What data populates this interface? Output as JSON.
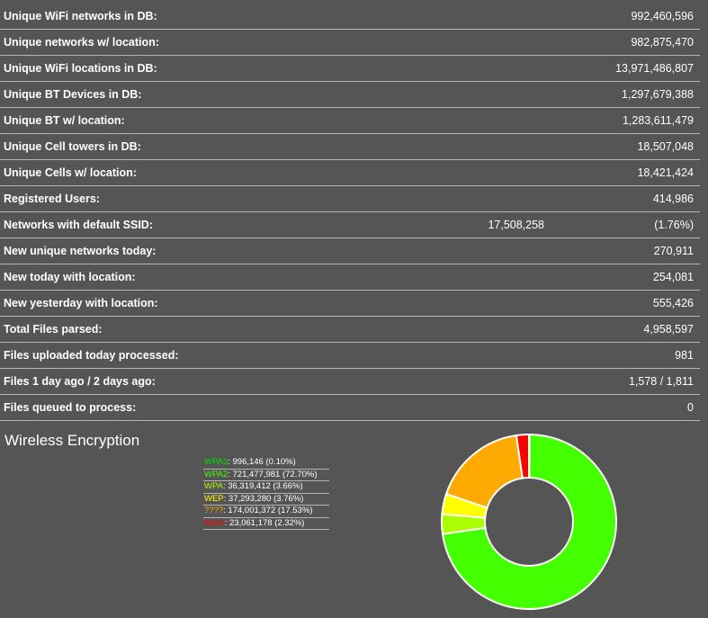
{
  "stats": [
    {
      "label": "Unique WiFi networks in DB:",
      "value": "992,460,596"
    },
    {
      "label": "Unique networks w/ location:",
      "value": "982,875,470"
    },
    {
      "label": "Unique WiFi locations in DB:",
      "value": "13,971,486,807"
    },
    {
      "label": "Unique BT Devices in DB:",
      "value": "1,297,679,388"
    },
    {
      "label": "Unique BT w/ location:",
      "value": "1,283,611,479"
    },
    {
      "label": "Unique Cell towers in DB:",
      "value": "18,507,048"
    },
    {
      "label": "Unique Cells w/ location:",
      "value": "18,421,424"
    },
    {
      "label": "Registered Users:",
      "value": "414,986"
    },
    {
      "label": "Networks with default SSID:",
      "value": "17,508,258",
      "extra": "(1.76%)"
    },
    {
      "label": "New unique networks today:",
      "value": "270,911"
    },
    {
      "label": "New today with location:",
      "value": "254,081"
    },
    {
      "label": "New yesterday with location:",
      "value": "555,426"
    },
    {
      "label": "Total Files parsed:",
      "value": "4,958,597"
    },
    {
      "label": "Files uploaded today processed:",
      "value": "981"
    },
    {
      "label": "Files 1 day ago / 2 days ago:",
      "value": "1,578 / 1,811"
    },
    {
      "label": "Files queued to process:",
      "value": "0"
    }
  ],
  "encryption": {
    "title": "Wireless Encryption"
  },
  "chart_data": {
    "type": "pie",
    "title": "Wireless Encryption",
    "donut": true,
    "legend_position": "left",
    "slices": [
      {
        "name": "WPA3",
        "value": 996146,
        "value_text": "996,146",
        "percent_text": "(0.10%)",
        "color": "#00dd00"
      },
      {
        "name": "WPA2",
        "value": 721477981,
        "value_text": "721,477,981",
        "percent_text": "(72.70%)",
        "color": "#44ff00"
      },
      {
        "name": "WPA",
        "value": 36319412,
        "value_text": "36,319,412",
        "percent_text": "(3.66%)",
        "color": "#aaff00"
      },
      {
        "name": "WEP",
        "value": 37293280,
        "value_text": "37,293,280",
        "percent_text": "(3.76%)",
        "color": "#ffff00"
      },
      {
        "name": "????",
        "value": 174001372,
        "value_text": "174,001,372",
        "percent_text": "(17.53%)",
        "color": "#ffaa00"
      },
      {
        "name": "None",
        "value": 23061178,
        "value_text": "23,061,178",
        "percent_text": "(2.32%)",
        "color": "#ff0000"
      }
    ]
  }
}
